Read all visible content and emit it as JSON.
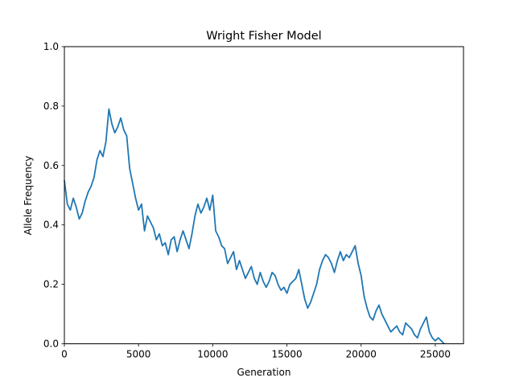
{
  "chart_data": {
    "type": "line",
    "title": "Wright Fisher Model",
    "xlabel": "Generation",
    "ylabel": "Allele Frequency",
    "xlim": [
      0,
      26900
    ],
    "ylim": [
      0,
      1.0
    ],
    "grid": false,
    "xticks": [
      0,
      5000,
      10000,
      15000,
      20000,
      25000
    ],
    "xtick_labels": [
      "0",
      "5000",
      "10000",
      "15000",
      "20000",
      "25000"
    ],
    "yticks": [
      0.0,
      0.2,
      0.4,
      0.6,
      0.8,
      1.0
    ],
    "ytick_labels": [
      "0.0",
      "0.2",
      "0.4",
      "0.6",
      "0.8",
      "1.0"
    ],
    "colors": {
      "series": "#1f77b4"
    },
    "series": [
      {
        "x": [
          0,
          200,
          400,
          600,
          800,
          1000,
          1200,
          1400,
          1600,
          1800,
          2000,
          2200,
          2400,
          2600,
          2800,
          3000,
          3200,
          3400,
          3600,
          3800,
          4000,
          4200,
          4400,
          4600,
          4800,
          5000,
          5200,
          5400,
          5600,
          5800,
          6000,
          6200,
          6400,
          6600,
          6800,
          7000,
          7200,
          7400,
          7600,
          7800,
          8000,
          8200,
          8400,
          8600,
          8800,
          9000,
          9200,
          9400,
          9600,
          9800,
          10000,
          10200,
          10400,
          10600,
          10800,
          11000,
          11200,
          11400,
          11600,
          11800,
          12000,
          12200,
          12400,
          12600,
          12800,
          13000,
          13200,
          13400,
          13600,
          13800,
          14000,
          14200,
          14400,
          14600,
          14800,
          15000,
          15200,
          15400,
          15600,
          15800,
          16000,
          16200,
          16400,
          16600,
          16800,
          17000,
          17200,
          17400,
          17600,
          17800,
          18000,
          18200,
          18400,
          18600,
          18800,
          19000,
          19200,
          19400,
          19600,
          19800,
          20000,
          20200,
          20400,
          20600,
          20800,
          21000,
          21200,
          21400,
          21600,
          21800,
          22000,
          22200,
          22400,
          22600,
          22800,
          23000,
          23200,
          23400,
          23600,
          23800,
          24000,
          24200,
          24400,
          24600,
          24800,
          25000,
          25200,
          25400,
          25600
        ],
        "y": [
          0.55,
          0.47,
          0.45,
          0.49,
          0.46,
          0.42,
          0.44,
          0.48,
          0.51,
          0.53,
          0.56,
          0.62,
          0.65,
          0.63,
          0.68,
          0.79,
          0.74,
          0.71,
          0.73,
          0.76,
          0.72,
          0.7,
          0.59,
          0.54,
          0.49,
          0.45,
          0.47,
          0.38,
          0.43,
          0.41,
          0.39,
          0.35,
          0.37,
          0.33,
          0.34,
          0.3,
          0.35,
          0.36,
          0.31,
          0.35,
          0.38,
          0.35,
          0.32,
          0.37,
          0.43,
          0.47,
          0.44,
          0.46,
          0.49,
          0.45,
          0.5,
          0.38,
          0.36,
          0.33,
          0.32,
          0.27,
          0.29,
          0.31,
          0.25,
          0.28,
          0.25,
          0.22,
          0.24,
          0.26,
          0.22,
          0.2,
          0.24,
          0.21,
          0.19,
          0.21,
          0.24,
          0.23,
          0.2,
          0.18,
          0.19,
          0.17,
          0.2,
          0.21,
          0.22,
          0.25,
          0.2,
          0.15,
          0.12,
          0.14,
          0.17,
          0.2,
          0.25,
          0.28,
          0.3,
          0.29,
          0.27,
          0.24,
          0.28,
          0.31,
          0.28,
          0.3,
          0.29,
          0.31,
          0.33,
          0.27,
          0.23,
          0.16,
          0.12,
          0.09,
          0.08,
          0.11,
          0.13,
          0.1,
          0.08,
          0.06,
          0.04,
          0.05,
          0.06,
          0.04,
          0.03,
          0.07,
          0.06,
          0.05,
          0.03,
          0.02,
          0.05,
          0.07,
          0.09,
          0.04,
          0.02,
          0.01,
          0.02,
          0.01,
          0.0
        ]
      }
    ]
  }
}
